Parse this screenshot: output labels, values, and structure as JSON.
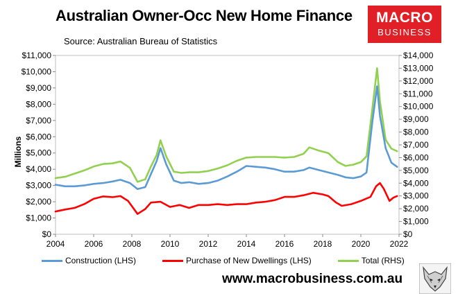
{
  "header": {
    "title": "Australian Owner-Occ New Home Finance",
    "source": "Source: Australian Bureau of Statistics"
  },
  "logo": {
    "line1": "MACRO",
    "line2": "BUSINESS",
    "color": "#e01f26"
  },
  "footer": {
    "url": "www.macrobusiness.com.au"
  },
  "chart_data": {
    "type": "line",
    "xlabel": "",
    "ylabel": "Millions",
    "y2label": "",
    "xlim": [
      2004,
      2022
    ],
    "ylim": [
      0,
      11000
    ],
    "y2lim": [
      0,
      14000
    ],
    "x_ticks": [
      "2004",
      "2006",
      "2008",
      "2010",
      "2012",
      "2014",
      "2016",
      "2018",
      "2020",
      "2022"
    ],
    "y_ticks": [
      "$0",
      "$1,000",
      "$2,000",
      "$3,000",
      "$4,000",
      "$5,000",
      "$6,000",
      "$7,000",
      "$8,000",
      "$9,000",
      "$10,000",
      "$11,000"
    ],
    "y2_ticks": [
      "$0",
      "$1,000",
      "$2,000",
      "$3,000",
      "$4,000",
      "$5,000",
      "$6,000",
      "$7,000",
      "$8,000",
      "$9,000",
      "$10,000",
      "$11,000",
      "$12,000",
      "$13,000",
      "$14,000"
    ],
    "grid": false,
    "legend_position": "bottom",
    "series": [
      {
        "name": "Construction (LHS)",
        "axis": "left",
        "color": "#5b9bd5",
        "points": [
          [
            2004.0,
            3050
          ],
          [
            2004.5,
            2950
          ],
          [
            2005.0,
            2950
          ],
          [
            2005.5,
            3000
          ],
          [
            2006.0,
            3100
          ],
          [
            2006.5,
            3150
          ],
          [
            2007.0,
            3250
          ],
          [
            2007.4,
            3350
          ],
          [
            2007.9,
            3150
          ],
          [
            2008.3,
            2780
          ],
          [
            2008.7,
            2900
          ],
          [
            2009.0,
            3700
          ],
          [
            2009.3,
            4500
          ],
          [
            2009.5,
            5300
          ],
          [
            2009.8,
            4300
          ],
          [
            2010.2,
            3300
          ],
          [
            2010.6,
            3150
          ],
          [
            2011.0,
            3200
          ],
          [
            2011.5,
            3100
          ],
          [
            2012.0,
            3150
          ],
          [
            2012.5,
            3300
          ],
          [
            2013.0,
            3550
          ],
          [
            2013.5,
            3850
          ],
          [
            2014.0,
            4200
          ],
          [
            2014.5,
            4150
          ],
          [
            2015.0,
            4100
          ],
          [
            2015.5,
            4000
          ],
          [
            2016.0,
            3850
          ],
          [
            2016.5,
            3850
          ],
          [
            2017.0,
            3950
          ],
          [
            2017.3,
            4100
          ],
          [
            2017.8,
            3950
          ],
          [
            2018.3,
            3800
          ],
          [
            2018.8,
            3650
          ],
          [
            2019.2,
            3500
          ],
          [
            2019.6,
            3450
          ],
          [
            2020.0,
            3550
          ],
          [
            2020.3,
            3800
          ],
          [
            2020.6,
            6900
          ],
          [
            2020.85,
            9100
          ],
          [
            2021.0,
            7300
          ],
          [
            2021.3,
            5300
          ],
          [
            2021.6,
            4400
          ],
          [
            2021.9,
            4150
          ]
        ]
      },
      {
        "name": "Purchase of New Dwellings (LHS)",
        "axis": "left",
        "color": "#ff0000",
        "points": [
          [
            2004.0,
            1400
          ],
          [
            2004.5,
            1520
          ],
          [
            2005.0,
            1620
          ],
          [
            2005.5,
            1850
          ],
          [
            2006.0,
            2180
          ],
          [
            2006.5,
            2330
          ],
          [
            2007.0,
            2280
          ],
          [
            2007.4,
            2350
          ],
          [
            2007.8,
            2050
          ],
          [
            2008.3,
            1250
          ],
          [
            2008.7,
            1550
          ],
          [
            2009.0,
            1950
          ],
          [
            2009.5,
            2000
          ],
          [
            2010.0,
            1680
          ],
          [
            2010.5,
            1800
          ],
          [
            2011.0,
            1620
          ],
          [
            2011.5,
            1800
          ],
          [
            2012.0,
            1800
          ],
          [
            2012.5,
            1850
          ],
          [
            2013.0,
            1800
          ],
          [
            2013.5,
            1850
          ],
          [
            2014.0,
            1850
          ],
          [
            2014.5,
            1950
          ],
          [
            2015.0,
            2000
          ],
          [
            2015.5,
            2100
          ],
          [
            2016.0,
            2300
          ],
          [
            2016.5,
            2300
          ],
          [
            2017.0,
            2400
          ],
          [
            2017.5,
            2550
          ],
          [
            2018.0,
            2450
          ],
          [
            2018.3,
            2350
          ],
          [
            2018.7,
            1950
          ],
          [
            2019.0,
            1750
          ],
          [
            2019.5,
            1850
          ],
          [
            2020.0,
            2050
          ],
          [
            2020.5,
            2300
          ],
          [
            2020.8,
            2950
          ],
          [
            2021.0,
            3150
          ],
          [
            2021.2,
            2800
          ],
          [
            2021.5,
            2050
          ],
          [
            2021.7,
            2250
          ],
          [
            2021.9,
            2350
          ]
        ]
      },
      {
        "name": "Total (RHS)",
        "axis": "right",
        "color": "#92d050",
        "points": [
          [
            2004.0,
            4400
          ],
          [
            2004.5,
            4500
          ],
          [
            2005.0,
            4750
          ],
          [
            2005.5,
            5000
          ],
          [
            2006.0,
            5300
          ],
          [
            2006.5,
            5500
          ],
          [
            2007.0,
            5550
          ],
          [
            2007.4,
            5700
          ],
          [
            2007.9,
            5200
          ],
          [
            2008.3,
            4100
          ],
          [
            2008.7,
            4300
          ],
          [
            2009.0,
            5300
          ],
          [
            2009.3,
            6200
          ],
          [
            2009.5,
            7350
          ],
          [
            2009.8,
            6100
          ],
          [
            2010.2,
            4900
          ],
          [
            2010.6,
            4800
          ],
          [
            2011.0,
            4850
          ],
          [
            2011.5,
            4850
          ],
          [
            2012.0,
            4950
          ],
          [
            2012.5,
            5150
          ],
          [
            2013.0,
            5400
          ],
          [
            2013.5,
            5750
          ],
          [
            2014.0,
            6000
          ],
          [
            2014.5,
            6050
          ],
          [
            2015.0,
            6050
          ],
          [
            2015.5,
            6050
          ],
          [
            2016.0,
            6000
          ],
          [
            2016.5,
            6050
          ],
          [
            2017.0,
            6300
          ],
          [
            2017.3,
            6800
          ],
          [
            2017.8,
            6550
          ],
          [
            2018.3,
            6350
          ],
          [
            2018.8,
            5650
          ],
          [
            2019.2,
            5350
          ],
          [
            2019.6,
            5450
          ],
          [
            2020.0,
            5650
          ],
          [
            2020.3,
            6100
          ],
          [
            2020.6,
            9800
          ],
          [
            2020.85,
            13000
          ],
          [
            2021.0,
            10400
          ],
          [
            2021.3,
            7400
          ],
          [
            2021.6,
            6700
          ],
          [
            2021.9,
            6500
          ]
        ]
      }
    ]
  }
}
